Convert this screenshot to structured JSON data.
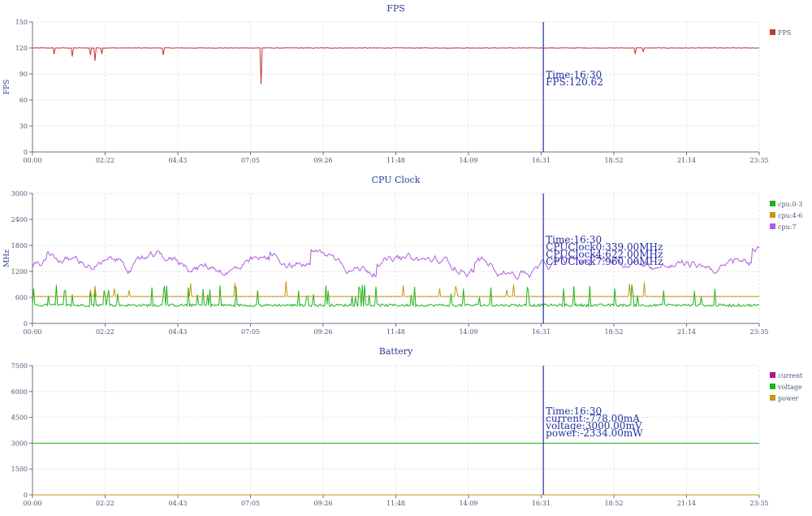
{
  "chart_data": [
    {
      "type": "line",
      "title": "FPS",
      "ylabel": "FPS",
      "ylim": [
        0,
        150
      ],
      "yticks": [
        "0",
        "30",
        "60",
        "90",
        "120",
        "150"
      ],
      "xticks": [
        "00:00",
        "02:22",
        "04:43",
        "07:05",
        "09:26",
        "11:48",
        "14:09",
        "16:31",
        "18:52",
        "21:14",
        "23:35"
      ],
      "grid": true,
      "legend_position": "right",
      "series": [
        {
          "name": "FPS",
          "color": "#c23531",
          "baseline": 120,
          "noise": 0.6,
          "spike_prob": 0.0,
          "spike_min": 0,
          "spike_max": 0,
          "dips": [
            [
              0.03,
              113
            ],
            [
              0.055,
              110
            ],
            [
              0.08,
              112
            ],
            [
              0.086,
              105
            ],
            [
              0.095,
              113
            ],
            [
              0.18,
              112
            ],
            [
              0.315,
              78
            ],
            [
              0.83,
              113
            ],
            [
              0.84,
              116
            ]
          ]
        }
      ],
      "cursor": {
        "time_fraction": 0.703,
        "lines": [
          "Time:16:30",
          "FPS:120.62"
        ]
      }
    },
    {
      "type": "line",
      "title": "CPU Clock",
      "ylabel": "MHz",
      "ylim": [
        0,
        3000
      ],
      "yticks": [
        "0",
        "600",
        "1200",
        "1800",
        "2400",
        "3000"
      ],
      "xticks": [
        "00:00",
        "02:22",
        "04:43",
        "07:05",
        "09:26",
        "11:48",
        "14:09",
        "16:31",
        "18:52",
        "21:14",
        "23:35"
      ],
      "grid": true,
      "legend_position": "right",
      "series": [
        {
          "name": "cpu:0-3",
          "color": "#1db31d",
          "baseline": 420,
          "noise": 60,
          "spike_prob": 0.09,
          "spike_min": 600,
          "spike_max": 900
        },
        {
          "name": "cpu:4-6",
          "color": "#c8960c",
          "baseline": 622,
          "noise": 0,
          "spike_prob": 0.02,
          "spike_min": 750,
          "spike_max": 1000
        },
        {
          "name": "cpu:7",
          "color": "#b25ce0",
          "baseline": 1300,
          "noise": 320,
          "spike_prob": 0.0,
          "spike_min": 0,
          "spike_max": 0,
          "min": 800,
          "max": 2400
        }
      ],
      "cursor": {
        "time_fraction": 0.703,
        "lines": [
          "Time:16:30",
          "CPUClock0:339.00MHz",
          "CPUClock4:622.00MHz",
          "CPUClock7:960.00MHz"
        ]
      }
    },
    {
      "type": "line",
      "title": "Battery",
      "ylabel": "",
      "ylim": [
        0,
        7500
      ],
      "yticks": [
        "0",
        "1500",
        "3000",
        "4500",
        "6000",
        "7500"
      ],
      "xticks": [
        "00:00",
        "02:22",
        "04:43",
        "07:05",
        "09:26",
        "11:48",
        "14:09",
        "16:31",
        "18:52",
        "21:14",
        "23:35"
      ],
      "grid": true,
      "legend_position": "right",
      "series": [
        {
          "name": "current",
          "color": "#b0108a",
          "baseline": -778,
          "noise": 0,
          "spike_prob": 0,
          "spike_min": 0,
          "spike_max": 0
        },
        {
          "name": "voltage",
          "color": "#1db31d",
          "baseline": 3000,
          "noise": 0,
          "spike_prob": 0,
          "spike_min": 0,
          "spike_max": 0
        },
        {
          "name": "power",
          "color": "#c8960c",
          "baseline": -2334,
          "noise": 0,
          "spike_prob": 0,
          "spike_min": 0,
          "spike_max": 0
        }
      ],
      "cursor": {
        "time_fraction": 0.703,
        "lines": [
          "Time:16:30",
          "current:-778.00mA",
          "voltage:3000.00mV",
          "power:-2334.00mW"
        ]
      }
    }
  ]
}
